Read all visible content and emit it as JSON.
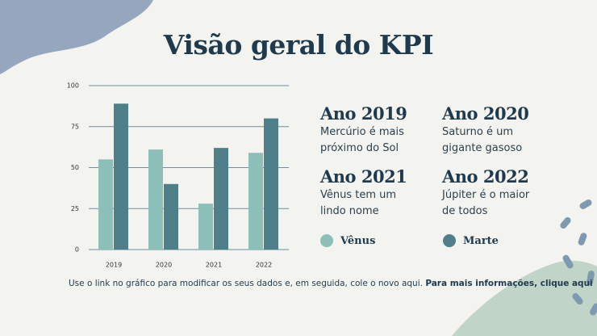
{
  "title": "Visão geral do KPI",
  "chart_data": {
    "type": "bar",
    "categories": [
      "2019",
      "2020",
      "2021",
      "2022"
    ],
    "series": [
      {
        "name": "Vênus",
        "color": "#8bbfb7",
        "values": [
          55,
          61,
          28,
          59
        ]
      },
      {
        "name": "Marte",
        "color": "#4f7f88",
        "values": [
          89,
          40,
          62,
          80
        ]
      }
    ],
    "ylim": [
      0,
      100
    ],
    "yticks": [
      0,
      25,
      50,
      75,
      100
    ],
    "grid": true
  },
  "cards": [
    {
      "heading": "Ano 2019",
      "text": "Mercúrio é mais próximo do Sol"
    },
    {
      "heading": "Ano 2020",
      "text": "Saturno é um gigante gasoso"
    },
    {
      "heading": "Ano 2021",
      "text": "Vênus tem um lindo nome"
    },
    {
      "heading": "Ano 2022",
      "text": "Júpiter é o maior de todos"
    }
  ],
  "footer": {
    "text": "Use o link no gráfico para modificar os seus dados e, em seguida, cole o novo aqui.",
    "link": "Para mais informações, clique aqui"
  }
}
